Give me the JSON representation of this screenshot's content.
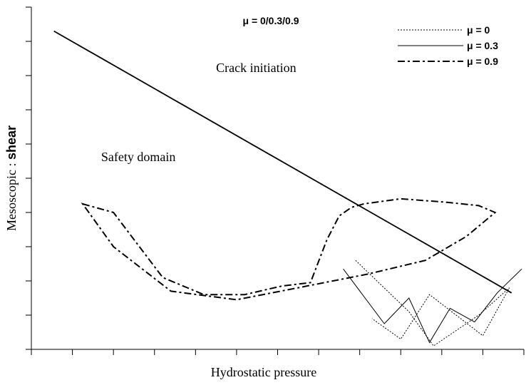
{
  "chart_data": {
    "type": "line",
    "title": "μ = 0/0.3/0.9",
    "xlabel": "Hydrostatic pressure",
    "ylabel_regular": "Mesoscopic",
    "ylabel_bold": "shear",
    "xlim": [
      0,
      12
    ],
    "ylim": [
      0,
      10
    ],
    "grid": false,
    "legend_position": "top-right",
    "annotations": [
      {
        "text": "Crack initiation",
        "x": 4.5,
        "y": 8.1
      },
      {
        "text": "Safety domain",
        "x": 1.7,
        "y": 5.5
      }
    ],
    "threshold_line": {
      "name": "Crack initiation",
      "x": [
        0.55,
        11.7
      ],
      "y": [
        9.3,
        1.65
      ]
    },
    "series": [
      {
        "name": "μ = 0",
        "style": "dotted",
        "x": [
          7.9,
          9.2,
          9.8,
          10.9,
          11.65,
          11.0,
          9.7,
          9.0,
          8.3
        ],
        "y": [
          2.6,
          1.1,
          0.1,
          1.0,
          1.8,
          0.4,
          1.6,
          0.3,
          0.9
        ]
      },
      {
        "name": "μ = 0.3",
        "style": "solid",
        "x": [
          7.6,
          8.6,
          9.2,
          9.7,
          10.2,
          10.8,
          11.35,
          11.95
        ],
        "y": [
          2.35,
          0.75,
          1.5,
          0.2,
          1.2,
          0.8,
          1.65,
          2.35
        ]
      },
      {
        "name": "μ = 0.9",
        "style": "dashdot",
        "x": [
          1.25,
          2.0,
          3.2,
          4.2,
          5.2,
          6.1,
          6.8,
          7.2,
          7.5,
          7.8,
          8.1,
          9.0,
          10.1,
          10.9,
          11.3,
          10.6,
          9.6,
          8.2,
          6.5,
          5.0,
          3.4,
          2.0
        ],
        "y": [
          4.25,
          4.0,
          2.1,
          1.6,
          1.6,
          1.85,
          1.95,
          3.2,
          3.9,
          4.15,
          4.25,
          4.4,
          4.3,
          4.2,
          4.0,
          3.3,
          2.6,
          2.2,
          1.8,
          1.45,
          1.7,
          3.0
        ]
      }
    ]
  }
}
